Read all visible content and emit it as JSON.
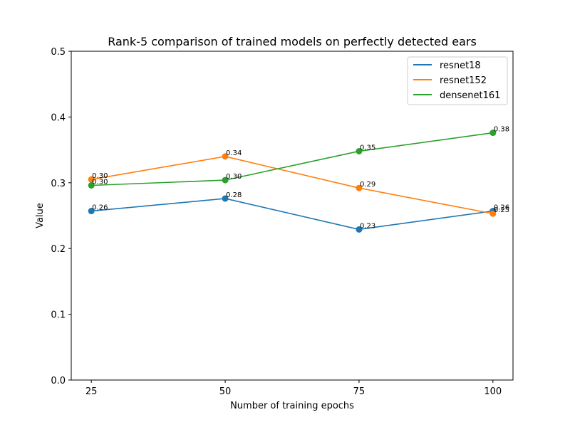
{
  "chart_data": {
    "type": "line",
    "title": "Rank-5 comparison of trained models on perfectly detected ears",
    "xlabel": "Number of training epochs",
    "ylabel": "Value",
    "x": [
      25,
      50,
      75,
      100
    ],
    "x_tick_labels": [
      "25",
      "50",
      "75",
      "100"
    ],
    "ylim": [
      0.0,
      0.5
    ],
    "y_ticks": [
      0.0,
      0.1,
      0.2,
      0.3,
      0.4,
      0.5
    ],
    "y_tick_labels": [
      "0.0",
      "0.1",
      "0.2",
      "0.3",
      "0.4",
      "0.5"
    ],
    "grid": false,
    "legend_position": "top-right",
    "series": [
      {
        "name": "resnet18",
        "color": "#1f77b4",
        "values": [
          0.257,
          0.276,
          0.229,
          0.257
        ],
        "labels": [
          "0.26",
          "0.28",
          "0.23",
          "0.26"
        ]
      },
      {
        "name": "resnet152",
        "color": "#ff7f0e",
        "values": [
          0.305,
          0.34,
          0.292,
          0.253
        ],
        "labels": [
          "0.30",
          "0.34",
          "0.29",
          "0.25"
        ]
      },
      {
        "name": "densenet161",
        "color": "#2ca02c",
        "values": [
          0.296,
          0.304,
          0.348,
          0.376
        ],
        "labels": [
          "0.30",
          "0.30",
          "0.35",
          "0.38"
        ]
      }
    ]
  }
}
